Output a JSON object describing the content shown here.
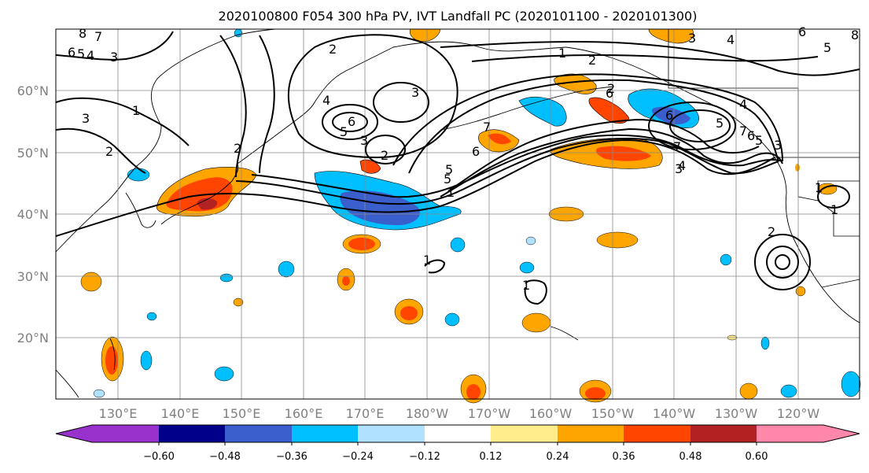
{
  "title": "2020100800 F054 300 hPa PV, IVT Landfall PC (2020101100 - 2020101300)",
  "lat_labels": [
    "60°N",
    "50°N",
    "40°N",
    "30°N",
    "20°N"
  ],
  "lon_labels": [
    "130°E",
    "140°E",
    "150°E",
    "160°E",
    "170°E",
    "180°W",
    "170°W",
    "160°W",
    "150°W",
    "140°W",
    "130°W",
    "120°W"
  ],
  "colorbar": {
    "colors": [
      "#9932cc",
      "#00008b",
      "#3a5fcd",
      "#00bfff",
      "#b0e2ff",
      "#ffffff",
      "#ffec8b",
      "#ffa500",
      "#ff4500",
      "#b22222",
      "#ff88aa"
    ],
    "tick_labels": [
      "−0.60",
      "−0.48",
      "−0.36",
      "−0.24",
      "−0.12",
      "0.12",
      "0.24",
      "0.36",
      "0.48",
      "0.60"
    ]
  },
  "contour_labels": [
    "8",
    "7",
    "6",
    "5",
    "4",
    "3",
    "2",
    "1",
    "2",
    "3",
    "4",
    "5",
    "6",
    "3",
    "2",
    "5",
    "6",
    "7",
    "2",
    "3",
    "5",
    "6",
    "1",
    "2",
    "3",
    "4",
    "5",
    "6",
    "7",
    "8",
    "1",
    "2",
    "3",
    "4",
    "5",
    "6",
    "7",
    "6",
    "5",
    "4",
    "3",
    "1",
    "2",
    "1",
    "1",
    "1"
  ]
}
